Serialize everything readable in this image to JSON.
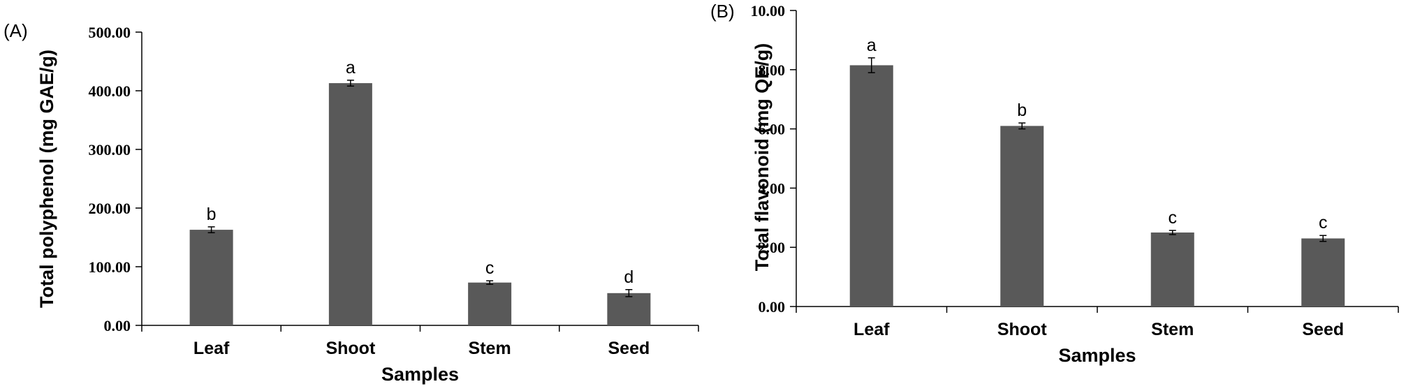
{
  "chart_data": [
    {
      "type": "bar",
      "panel_label": "(A)",
      "categories": [
        "Leaf",
        "Shoot",
        "Stem",
        "Seed"
      ],
      "values": [
        163,
        413,
        73,
        55
      ],
      "errors": [
        5,
        5,
        3,
        6
      ],
      "significance": [
        "b",
        "a",
        "c",
        "d"
      ],
      "xlabel": "Samples",
      "ylabel": "Total polyphenol (mg GAE/g)",
      "ylim": [
        0,
        500
      ],
      "yticks": [
        "0.00",
        "100.00",
        "200.00",
        "300.00",
        "400.00",
        "500.00"
      ],
      "grid": false,
      "bar_color": "#595959"
    },
    {
      "type": "bar",
      "panel_label": "(B)",
      "categories": [
        "Leaf",
        "Shoot",
        "Stem",
        "Seed"
      ],
      "values": [
        8.15,
        6.1,
        2.5,
        2.3
      ],
      "errors": [
        0.25,
        0.1,
        0.07,
        0.1
      ],
      "significance": [
        "a",
        "b",
        "c",
        "c"
      ],
      "xlabel": "Samples",
      "ylabel": "Total flavonoid (mg QE/g)",
      "ylim": [
        0,
        10
      ],
      "yticks": [
        "0.00",
        "2.00",
        "4.00",
        "6.00",
        "8.00",
        "10.00"
      ],
      "grid": false,
      "bar_color": "#595959"
    }
  ]
}
